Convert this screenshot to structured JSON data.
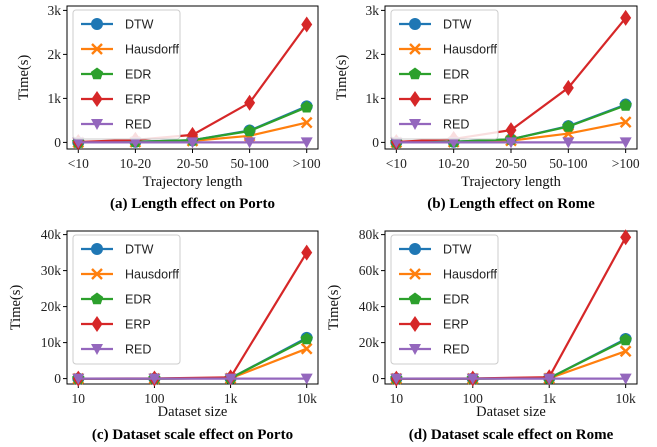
{
  "colors": {
    "DTW": "#1f77b4",
    "Hausdorff": "#ff7f0e",
    "EDR": "#2ca02c",
    "ERP": "#d62728",
    "RED": "#9467bd"
  },
  "markers": {
    "DTW": "circle",
    "Hausdorff": "x",
    "EDR": "pentagon",
    "ERP": "diamond",
    "RED": "triangle-down"
  },
  "chart_data": [
    {
      "type": "line",
      "caption": "(a) Length effect on Porto",
      "xlabel": "Trajectory length",
      "ylabel": "Time(s)",
      "categories": [
        "<10",
        "10-20",
        "20-50",
        "50-100",
        ">100"
      ],
      "ylim": [
        -150,
        3100
      ],
      "yticks": [
        0,
        1000,
        2000,
        3000
      ],
      "yticklabels": [
        "0",
        "1k",
        "2k",
        "3k"
      ],
      "legend": "top-left",
      "series": [
        {
          "name": "DTW",
          "values": [
            0,
            15,
            50,
            270,
            820
          ]
        },
        {
          "name": "Hausdorff",
          "values": [
            0,
            10,
            35,
            150,
            450
          ]
        },
        {
          "name": "EDR",
          "values": [
            0,
            15,
            50,
            260,
            800
          ]
        },
        {
          "name": "ERP",
          "values": [
            10,
            60,
            170,
            900,
            2680
          ]
        },
        {
          "name": "RED",
          "values": [
            0,
            0,
            0,
            0,
            0
          ]
        }
      ]
    },
    {
      "type": "line",
      "caption": "(b) Length effect on Rome",
      "xlabel": "Trajectory length",
      "ylabel": "Time(s)",
      "categories": [
        "<10",
        "10-20",
        "20-50",
        "50-100",
        ">100"
      ],
      "ylim": [
        -150,
        3100
      ],
      "yticks": [
        0,
        1000,
        2000,
        3000
      ],
      "yticklabels": [
        "0",
        "1k",
        "2k",
        "3k"
      ],
      "legend": "top-left",
      "series": [
        {
          "name": "DTW",
          "values": [
            0,
            15,
            70,
            370,
            860
          ]
        },
        {
          "name": "Hausdorff",
          "values": [
            0,
            10,
            40,
            200,
            460
          ]
        },
        {
          "name": "EDR",
          "values": [
            0,
            15,
            70,
            360,
            840
          ]
        },
        {
          "name": "ERP",
          "values": [
            10,
            80,
            280,
            1240,
            2830
          ]
        },
        {
          "name": "RED",
          "values": [
            0,
            0,
            0,
            0,
            0
          ]
        }
      ]
    },
    {
      "type": "line",
      "caption": "(c) Dataset scale effect on Porto",
      "xlabel": "Dataset size",
      "ylabel": "Time(s)",
      "categories": [
        "10",
        "100",
        "1k",
        "10k"
      ],
      "ylim": [
        -1500,
        41000
      ],
      "yticks": [
        0,
        10000,
        20000,
        30000,
        40000
      ],
      "yticklabels": [
        "0",
        "10k",
        "20k",
        "30k",
        "40k"
      ],
      "legend": "top-left",
      "series": [
        {
          "name": "DTW",
          "values": [
            0,
            5,
            110,
            11300
          ]
        },
        {
          "name": "Hausdorff",
          "values": [
            0,
            3,
            80,
            8300
          ]
        },
        {
          "name": "EDR",
          "values": [
            0,
            5,
            110,
            11000
          ]
        },
        {
          "name": "ERP",
          "values": [
            0,
            15,
            350,
            35000
          ]
        },
        {
          "name": "RED",
          "values": [
            0,
            0,
            0,
            0
          ]
        }
      ]
    },
    {
      "type": "line",
      "caption": "(d) Dataset scale effect on Rome",
      "xlabel": "Dataset size",
      "ylabel": "Time(s)",
      "categories": [
        "10",
        "100",
        "1k",
        "10k"
      ],
      "ylim": [
        -3000,
        82000
      ],
      "yticks": [
        0,
        20000,
        40000,
        60000,
        80000
      ],
      "yticklabels": [
        "0",
        "20k",
        "40k",
        "60k",
        "80k"
      ],
      "legend": "top-left",
      "series": [
        {
          "name": "DTW",
          "values": [
            0,
            10,
            220,
            22000
          ]
        },
        {
          "name": "Hausdorff",
          "values": [
            0,
            5,
            150,
            15200
          ]
        },
        {
          "name": "EDR",
          "values": [
            0,
            10,
            210,
            21500
          ]
        },
        {
          "name": "ERP",
          "values": [
            0,
            30,
            780,
            78500
          ]
        },
        {
          "name": "RED",
          "values": [
            0,
            0,
            0,
            0
          ]
        }
      ]
    }
  ]
}
